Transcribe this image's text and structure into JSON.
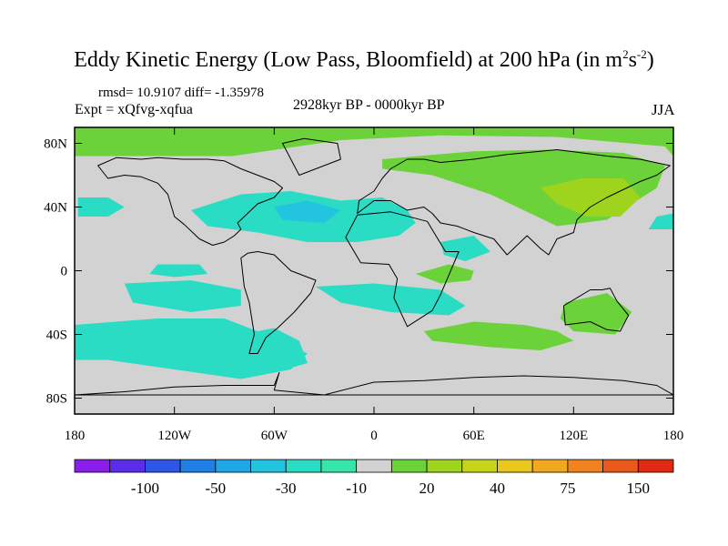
{
  "chart_data": {
    "type": "heatmap",
    "title_main": "Eddy Kinetic Energy (Low Pass, Bloomfield) at 200 hPa (in m",
    "title_sup1": "2",
    "title_mid": "s",
    "title_sup2": "-2",
    "title_end": ")",
    "stats": "rmsd= 10.9107 diff= -1.35978",
    "experiment": "Expt = xQfvg-xqfua",
    "period": "2928kyr BP - 0000kyr BP",
    "season": "JJA",
    "x_axis": {
      "range": [
        -180,
        180
      ],
      "ticks": [
        {
          "value": -180,
          "label": "180"
        },
        {
          "value": -120,
          "label": "120W"
        },
        {
          "value": -60,
          "label": "60W"
        },
        {
          "value": 0,
          "label": "0"
        },
        {
          "value": 60,
          "label": "60E"
        },
        {
          "value": 120,
          "label": "120E"
        },
        {
          "value": 180,
          "label": "180"
        }
      ]
    },
    "y_axis": {
      "range": [
        -90,
        90
      ],
      "ticks": [
        {
          "value": 80,
          "label": "80N"
        },
        {
          "value": 40,
          "label": "40N"
        },
        {
          "value": 0,
          "label": "0"
        },
        {
          "value": -40,
          "label": "40S"
        },
        {
          "value": -80,
          "label": "80S"
        }
      ]
    },
    "colorbar": {
      "colors": [
        "#8c1eeb",
        "#5a2ee8",
        "#2d55e6",
        "#1f7fe6",
        "#1fa6e6",
        "#22c4e0",
        "#2adcc4",
        "#35e6a8",
        "#d2d2d2",
        "#6cd23a",
        "#9ed41e",
        "#c8d41a",
        "#e8c81c",
        "#f0a820",
        "#f08220",
        "#e85a1c",
        "#e02a14"
      ],
      "labels": [
        {
          "text": "-100",
          "boundary": 2
        },
        {
          "text": "-50",
          "boundary": 4
        },
        {
          "text": "-30",
          "boundary": 6
        },
        {
          "text": "-10",
          "boundary": 8
        },
        {
          "text": "20",
          "boundary": 10
        },
        {
          "text": "40",
          "boundary": 12
        },
        {
          "text": "75",
          "boundary": 14
        },
        {
          "text": "150",
          "boundary": 16
        }
      ]
    },
    "background_color": "#d2d2d2",
    "regions": [
      {
        "name": "arctic-positive",
        "color": "#6cd23a",
        "lon": [
          -165,
          -85,
          -20,
          40,
          110,
          175,
          180,
          180,
          -180,
          -180
        ],
        "lat": [
          72,
          72,
          82,
          85,
          84,
          78,
          72,
          90,
          90,
          72
        ]
      },
      {
        "name": "eurasia-positive",
        "color": "#6cd23a",
        "lon": [
          5,
          60,
          105,
          150,
          175,
          170,
          140,
          110,
          70,
          35,
          5
        ],
        "lat": [
          70,
          75,
          76,
          74,
          66,
          52,
          32,
          28,
          48,
          60,
          64
        ]
      },
      {
        "name": "east-asia-strong-positive",
        "color": "#9ed41e",
        "lon": [
          100,
          125,
          150,
          160,
          148,
          128,
          110
        ],
        "lat": [
          52,
          58,
          58,
          46,
          34,
          34,
          42
        ]
      },
      {
        "name": "north-pacific-negative",
        "color": "#2adcc4",
        "lon": [
          -178,
          -160,
          -150,
          -160,
          -178
        ],
        "lat": [
          46,
          46,
          40,
          34,
          34
        ]
      },
      {
        "name": "north-atlantic-negative",
        "color": "#2adcc4",
        "lon": [
          -110,
          -80,
          -50,
          -20,
          5,
          20,
          25,
          15,
          -10,
          -40,
          -70,
          -100
        ],
        "lat": [
          38,
          48,
          50,
          44,
          46,
          38,
          30,
          22,
          18,
          18,
          24,
          28
        ]
      },
      {
        "name": "north-atlantic-core",
        "color": "#22c4e0",
        "lon": [
          -60,
          -40,
          -20,
          -30,
          -55
        ],
        "lat": [
          40,
          44,
          38,
          30,
          32
        ]
      },
      {
        "name": "south-pacific-negative",
        "color": "#2adcc4",
        "lon": [
          -150,
          -110,
          -80,
          -80,
          -110,
          -145
        ],
        "lat": [
          -8,
          -6,
          -12,
          -22,
          -26,
          -20
        ]
      },
      {
        "name": "south-atlantic-negative",
        "color": "#2adcc4",
        "lon": [
          -35,
          0,
          40,
          55,
          45,
          10,
          -20
        ],
        "lat": [
          -10,
          -8,
          -12,
          -22,
          -28,
          -26,
          -20
        ]
      },
      {
        "name": "southern-ocean-negative",
        "color": "#2adcc4",
        "lon": [
          -180,
          -130,
          -90,
          -60,
          -40,
          -50,
          -80,
          -120,
          -160,
          -180
        ],
        "lat": [
          -34,
          -30,
          -30,
          -42,
          -52,
          -62,
          -68,
          -62,
          -56,
          -56
        ]
      },
      {
        "name": "south-america-negative",
        "color": "#2adcc4",
        "lon": [
          -80,
          -60,
          -45,
          -40,
          -60,
          -72
        ],
        "lat": [
          -40,
          -36,
          -44,
          -58,
          -64,
          -56
        ]
      },
      {
        "name": "australia-positive",
        "color": "#6cd23a",
        "lon": [
          115,
          140,
          155,
          145,
          120,
          112
        ],
        "lat": [
          -20,
          -14,
          -26,
          -40,
          -38,
          -30
        ]
      },
      {
        "name": "indian-ocean-positive",
        "color": "#6cd23a",
        "lon": [
          30,
          60,
          90,
          110,
          120,
          100,
          70,
          35
        ],
        "lat": [
          -38,
          -32,
          -34,
          -38,
          -44,
          -50,
          -48,
          -44
        ]
      },
      {
        "name": "africa-positive",
        "color": "#6cd23a",
        "lon": [
          25,
          45,
          60,
          58,
          40
        ],
        "lat": [
          -2,
          4,
          0,
          -6,
          -8
        ]
      },
      {
        "name": "equatorial-pacific-negative",
        "color": "#2adcc4",
        "lon": [
          -130,
          -105,
          -100,
          -120,
          -135
        ],
        "lat": [
          4,
          4,
          -2,
          -4,
          -2
        ]
      },
      {
        "name": "indian-ocean-negative",
        "color": "#2adcc4",
        "lon": [
          40,
          60,
          70,
          55,
          42
        ],
        "lat": [
          18,
          22,
          12,
          6,
          10
        ]
      },
      {
        "name": "east-pacific-negative",
        "color": "#2adcc4",
        "lon": [
          170,
          180,
          180,
          165
        ],
        "lat": [
          34,
          36,
          26,
          26
        ]
      }
    ],
    "coastlines": [
      {
        "name": "north-america",
        "lon": [
          -166,
          -160,
          -150,
          -140,
          -130,
          -124,
          -120,
          -114,
          -105,
          -97,
          -90,
          -84,
          -80,
          -82,
          -76,
          -70,
          -60,
          -55,
          -60,
          -70,
          -80,
          -90,
          -100,
          -115,
          -130,
          -140,
          -155,
          -166
        ],
        "lat": [
          66,
          58,
          60,
          59,
          55,
          48,
          34,
          29,
          20,
          16,
          18,
          22,
          26,
          30,
          36,
          42,
          46,
          52,
          56,
          60,
          64,
          69,
          70,
          70,
          71,
          70,
          71,
          66
        ]
      },
      {
        "name": "south-america",
        "lon": [
          -80,
          -76,
          -70,
          -60,
          -50,
          -35,
          -38,
          -48,
          -58,
          -65,
          -70,
          -75,
          -72,
          -75,
          -78,
          -80
        ],
        "lat": [
          8,
          11,
          12,
          10,
          0,
          -6,
          -14,
          -26,
          -36,
          -42,
          -52,
          -52,
          -40,
          -20,
          -10,
          8
        ]
      },
      {
        "name": "greenland",
        "lon": [
          -55,
          -45,
          -30,
          -20,
          -22,
          -42,
          -55
        ],
        "lat": [
          80,
          60,
          66,
          70,
          80,
          83,
          80
        ]
      },
      {
        "name": "europe-asia",
        "lon": [
          -10,
          -9,
          0,
          5,
          10,
          20,
          30,
          40,
          60,
          80,
          110,
          140,
          160,
          178,
          170,
          160,
          140,
          130,
          122,
          120,
          110,
          105,
          100,
          92,
          80,
          72,
          60,
          50,
          40,
          35,
          30,
          20,
          10,
          0,
          -10
        ],
        "lat": [
          36,
          44,
          50,
          58,
          64,
          70,
          70,
          68,
          70,
          73,
          76,
          72,
          70,
          66,
          60,
          56,
          46,
          40,
          32,
          24,
          20,
          10,
          14,
          22,
          10,
          20,
          24,
          28,
          30,
          36,
          40,
          38,
          44,
          44,
          36
        ]
      },
      {
        "name": "africa",
        "lon": [
          -17,
          -10,
          10,
          32,
          43,
          51,
          40,
          35,
          20,
          12,
          14,
          9,
          -8,
          -17
        ],
        "lat": [
          21,
          35,
          37,
          31,
          12,
          12,
          -15,
          -25,
          -35,
          -17,
          -5,
          4,
          5,
          21
        ]
      },
      {
        "name": "australia",
        "lon": [
          114,
          130,
          137,
          142,
          146,
          153,
          148,
          140,
          130,
          115,
          114
        ],
        "lat": [
          -22,
          -12,
          -12,
          -11,
          -19,
          -28,
          -38,
          -37,
          -32,
          -34,
          -22
        ]
      },
      {
        "name": "antarctica",
        "lon": [
          -180,
          -150,
          -120,
          -90,
          -60,
          -57,
          -60,
          -30,
          0,
          30,
          60,
          90,
          120,
          150,
          170,
          180
        ],
        "lat": [
          -78,
          -76,
          -73,
          -72,
          -72,
          -64,
          -75,
          -78,
          -70,
          -69,
          -67,
          -66,
          -67,
          -69,
          -72,
          -78
        ]
      }
    ]
  }
}
